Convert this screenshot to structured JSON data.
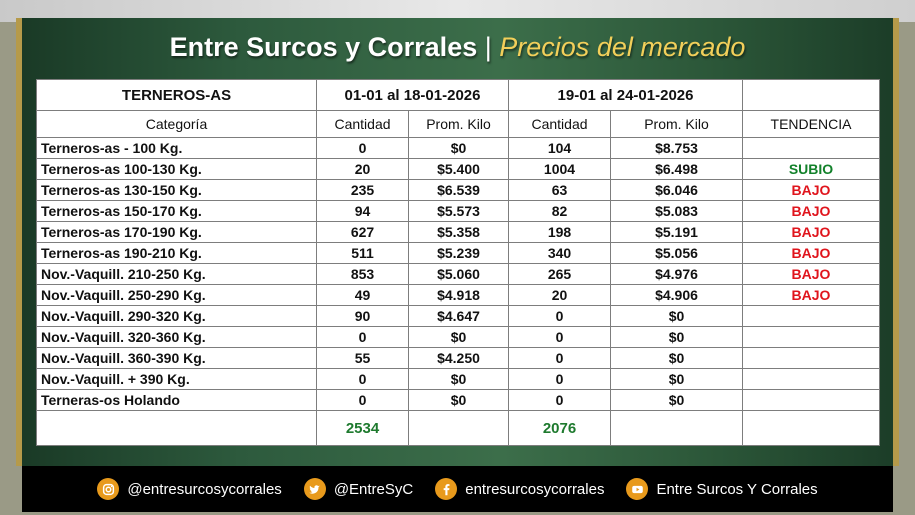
{
  "header": {
    "brand": "Entre Surcos y Corrales",
    "separator": "|",
    "subtitle": "Precios del mercado"
  },
  "table": {
    "section_label": "TERNEROS-AS",
    "period1": "01-01 al 18-01-2026",
    "period2": "19-01 al 24-01-2026",
    "columns": [
      "Categoría",
      "Cantidad",
      "Prom. Kilo",
      "Cantidad",
      "Prom. Kilo",
      "TENDENCIA"
    ],
    "rows": [
      [
        "Terneros-as - 100 Kg.",
        "0",
        "$0",
        "104",
        "$8.753",
        ""
      ],
      [
        "Terneros-as 100-130 Kg.",
        "20",
        "$5.400",
        "1004",
        "$6.498",
        "SUBIO"
      ],
      [
        "Terneros-as 130-150 Kg.",
        "235",
        "$6.539",
        "63",
        "$6.046",
        "BAJO"
      ],
      [
        "Terneros-as 150-170 Kg.",
        "94",
        "$5.573",
        "82",
        "$5.083",
        "BAJO"
      ],
      [
        "Terneros-as 170-190 Kg.",
        "627",
        "$5.358",
        "198",
        "$5.191",
        "BAJO"
      ],
      [
        "Terneros-as 190-210 Kg.",
        "511",
        "$5.239",
        "340",
        "$5.056",
        "BAJO"
      ],
      [
        "Nov.-Vaquill. 210-250 Kg.",
        "853",
        "$5.060",
        "265",
        "$4.976",
        "BAJO"
      ],
      [
        "Nov.-Vaquill. 250-290 Kg.",
        "49",
        "$4.918",
        "20",
        "$4.906",
        "BAJO"
      ],
      [
        "Nov.-Vaquill. 290-320 Kg.",
        "90",
        "$4.647",
        "0",
        "$0",
        ""
      ],
      [
        "Nov.-Vaquill. 320-360 Kg.",
        "0",
        "$0",
        "0",
        "$0",
        ""
      ],
      [
        "Nov.-Vaquill. 360-390 Kg.",
        "55",
        "$4.250",
        "0",
        "$0",
        ""
      ],
      [
        "Nov.-Vaquill. + 390 Kg.",
        "0",
        "$0",
        "0",
        "$0",
        ""
      ],
      [
        "Terneras-os Holando",
        "0",
        "$0",
        "0",
        "$0",
        ""
      ]
    ],
    "totals": {
      "period1": "2534",
      "period2": "2076"
    }
  },
  "trend_colors": {
    "SUBIO": "#12812a",
    "BAJO": "#e0141c"
  },
  "footer": {
    "instagram": "@entresurcosycorrales",
    "twitter": "@EntreSyC",
    "facebook": "entresurcosycorrales",
    "youtube": "Entre Surcos Y Corrales"
  },
  "icons": {
    "instagram": "instagram-icon",
    "twitter": "twitter-icon",
    "facebook": "facebook-icon",
    "youtube": "youtube-icon"
  }
}
